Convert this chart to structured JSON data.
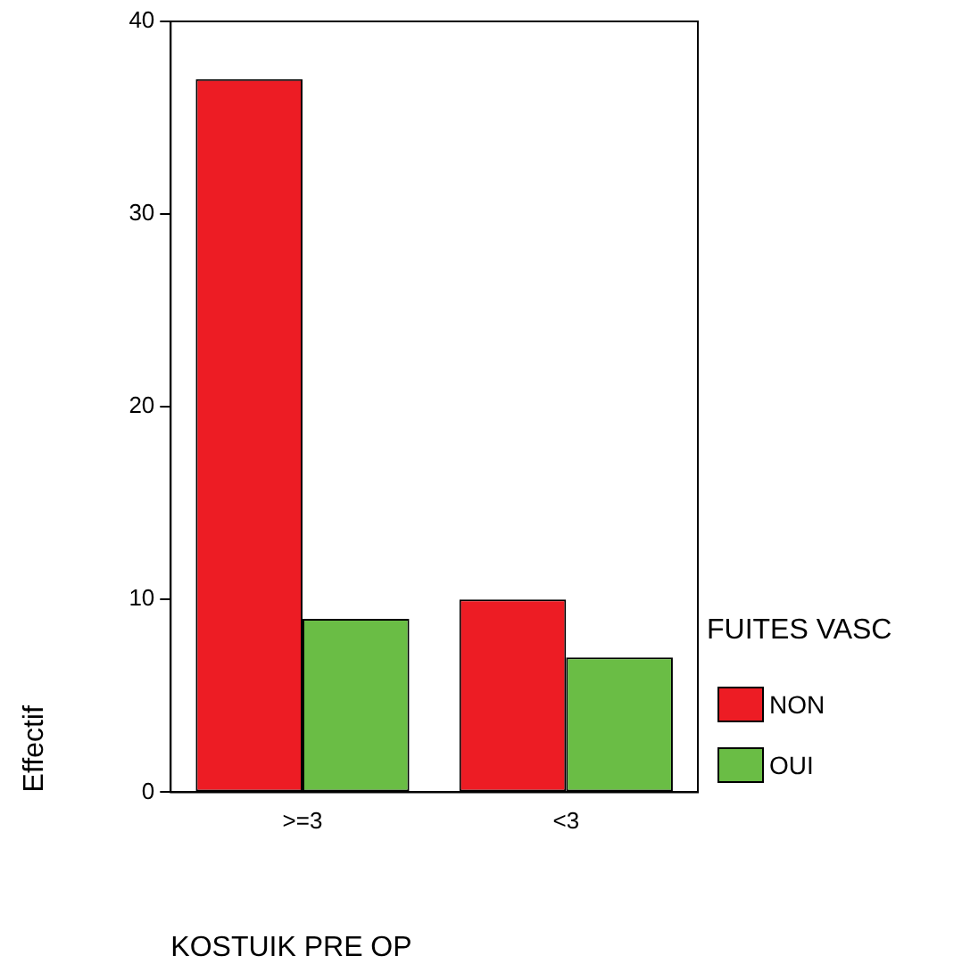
{
  "chart_data": {
    "type": "bar",
    "xlabel": "KOSTUIK PRE OP",
    "ylabel": "Effectif",
    "legend_title": "FUITES VASC",
    "categories": [
      ">=3",
      "<3"
    ],
    "series": [
      {
        "name": "NON",
        "color": "#ed1c24",
        "values": [
          37,
          10
        ]
      },
      {
        "name": "OUI",
        "color": "#6abd45",
        "values": [
          9,
          7
        ]
      }
    ],
    "ylim": [
      0,
      40
    ],
    "yticks": [
      0,
      10,
      20,
      30,
      40
    ],
    "legend": "right"
  }
}
